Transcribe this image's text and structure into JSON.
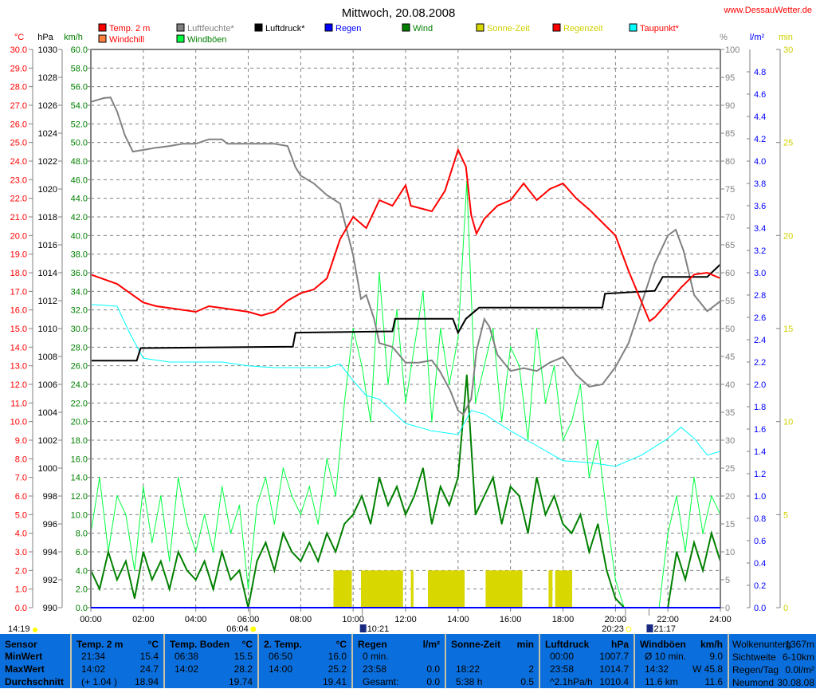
{
  "title": "Mittwoch, 20.08.2008",
  "website": "www.DessauWetter.de",
  "legend": [
    {
      "label": "Temp. 2 m",
      "swatch": "#ff0000",
      "text_color": "#ff0000"
    },
    {
      "label": "Luftfeuchte*",
      "swatch": "#808080",
      "text_color": "#808080"
    },
    {
      "label": "Luftdruck*",
      "swatch": "#000000",
      "text_color": "#000000"
    },
    {
      "label": "Regen",
      "swatch": "#0000ff",
      "text_color": "#0000ff"
    },
    {
      "label": "Wind",
      "swatch": "#008000",
      "text_color": "#008000"
    },
    {
      "label": "Sonne-Zeit",
      "swatch": "#d8d800",
      "text_color": "#d0d000"
    },
    {
      "label": "Regenzeit",
      "swatch": "#ff0000",
      "text_color": "#d0d000"
    },
    {
      "label": "Taupunkt*",
      "swatch": "#00ffff",
      "text_color": "#ff0000"
    },
    {
      "label": "Windchill",
      "swatch": "#ff8040",
      "text_color": "#ff0000"
    },
    {
      "label": "Windböen",
      "swatch": "#00ff40",
      "text_color": "#008000"
    }
  ],
  "chart_data": {
    "type": "line",
    "title": "Mittwoch, 20.08.2008",
    "xlabel": "",
    "x_ticks": [
      "00:00",
      "02:00",
      "04:00",
      "06:00",
      "08:00",
      "10:00",
      "12:00",
      "14:00",
      "16:00",
      "18:00",
      "20:00",
      "22:00",
      "24:00"
    ],
    "xlim": [
      0,
      24
    ],
    "grid": true,
    "legend_position": "top",
    "axes": {
      "temp": {
        "unit": "°C",
        "range": [
          0,
          30
        ],
        "color": "#ff0000"
      },
      "pressure": {
        "unit": "hPa",
        "range": [
          990,
          1030
        ],
        "color": "#000000"
      },
      "wind": {
        "unit": "km/h",
        "range": [
          0,
          60
        ],
        "color": "#008000"
      },
      "humidity": {
        "unit": "%",
        "range": [
          0,
          100
        ],
        "color": "#808080"
      },
      "rain": {
        "unit": "l/m²",
        "range": [
          0,
          5
        ],
        "color": "#0000ff"
      },
      "sun": {
        "unit": "min",
        "range": [
          0,
          30
        ],
        "color": "#d0d000"
      }
    },
    "series": [
      {
        "name": "Temp. 2 m",
        "axis": "temp",
        "color": "#ff0000",
        "t": [
          0,
          1,
          2,
          2.5,
          3,
          4,
          4.5,
          5,
          6,
          6.5,
          7,
          7.5,
          8,
          8.5,
          9,
          9.5,
          10,
          10.5,
          11,
          11.5,
          12,
          12.2,
          13,
          13.5,
          14,
          14.3,
          14.5,
          14.7,
          15,
          15.5,
          16,
          16.5,
          17,
          17.5,
          18,
          18.5,
          19,
          19.5,
          20,
          20.5,
          21,
          21.3,
          21.5,
          22,
          22.5,
          23,
          23.5,
          24
        ],
        "v": [
          17.9,
          17.4,
          16.4,
          16.2,
          16.1,
          15.9,
          16.2,
          16.1,
          15.9,
          15.7,
          15.9,
          16.5,
          16.9,
          17.1,
          17.7,
          19.8,
          21.0,
          20.4,
          21.9,
          21.6,
          22.7,
          21.6,
          21.3,
          22.4,
          24.6,
          23.7,
          21.1,
          20.1,
          20.9,
          21.6,
          21.9,
          22.8,
          21.9,
          22.5,
          22.8,
          22.0,
          21.4,
          20.7,
          20.0,
          18.1,
          16.4,
          15.4,
          15.6,
          16.4,
          17.2,
          17.9,
          18.0,
          17.7
        ]
      },
      {
        "name": "Luftfeuchte*",
        "axis": "humidity",
        "color": "#808080",
        "t": [
          0,
          0.5,
          0.75,
          1,
          1.3,
          1.6,
          2,
          2.5,
          3,
          3.5,
          4,
          4.5,
          5,
          5.2,
          6,
          7,
          7.5,
          7.8,
          8,
          8.5,
          9,
          9.5,
          10,
          10.3,
          10.5,
          10.8,
          11,
          11.5,
          12,
          12.5,
          13,
          13.3,
          13.7,
          14,
          14.2,
          14.5,
          14.7,
          15,
          15.2,
          15.5,
          16,
          16.5,
          17,
          17.5,
          18,
          18.5,
          19,
          19.5,
          20,
          20.5,
          21,
          21.5,
          22,
          22.3,
          22.6,
          23,
          23.5,
          24
        ],
        "v": [
          90.6,
          91.3,
          91.4,
          88.9,
          84.6,
          81.7,
          82,
          82.4,
          82.7,
          83.1,
          83.1,
          83.9,
          83.9,
          83.1,
          83.1,
          83.1,
          82.7,
          78.9,
          77.4,
          76,
          73.9,
          72.4,
          63.1,
          55.3,
          56,
          51.7,
          47.4,
          46.7,
          43.9,
          43.9,
          44.3,
          42.4,
          38.9,
          35.3,
          34.6,
          37.4,
          46,
          51.7,
          50.3,
          45.3,
          42.4,
          42.9,
          42.4,
          43.9,
          44.9,
          41.7,
          39.6,
          40,
          43.1,
          47.4,
          54.6,
          61.7,
          66.7,
          67.7,
          63.9,
          56,
          53.1,
          54.9
        ]
      },
      {
        "name": "Luftdruck*",
        "axis": "pressure",
        "color": "#000000",
        "t": [
          0,
          1.75,
          1.9,
          7.7,
          7.8,
          11.5,
          11.6,
          13.8,
          14,
          14.3,
          14.8,
          19.5,
          19.6,
          21.5,
          21.8,
          23.5,
          24
        ],
        "v": [
          1007.7,
          1007.7,
          1008.6,
          1008.7,
          1009.7,
          1009.8,
          1010.7,
          1010.7,
          1009.7,
          1010.7,
          1011.5,
          1011.5,
          1012.5,
          1012.7,
          1013.7,
          1013.7,
          1014.6
        ]
      },
      {
        "name": "Taupunkt*",
        "axis": "temp",
        "color": "#00ffff",
        "t": [
          0,
          1,
          1.5,
          2,
          3,
          4,
          5,
          6,
          7,
          8,
          9,
          9.5,
          10,
          10.5,
          11,
          12,
          13,
          14,
          14.5,
          15,
          16,
          17,
          18,
          19,
          20,
          21,
          22,
          22.5,
          23,
          23.5,
          24
        ],
        "v": [
          16.3,
          16.2,
          14.7,
          13.4,
          13.2,
          13.2,
          13.2,
          13.0,
          12.9,
          12.9,
          12.9,
          13.1,
          12.2,
          11.4,
          11.2,
          9.9,
          9.5,
          9.3,
          10.6,
          10.4,
          9.5,
          8.7,
          7.9,
          7.8,
          7.6,
          8.2,
          9.1,
          9.7,
          9.1,
          8.2,
          8.4
        ]
      },
      {
        "name": "Wind",
        "axis": "wind",
        "color": "#008000",
        "step_hours": 0.3333,
        "v": [
          4,
          2,
          6,
          3,
          5,
          1,
          6,
          3,
          5,
          2,
          6,
          4,
          3,
          5,
          2,
          6,
          3,
          4,
          0,
          5,
          7,
          4,
          8,
          6,
          5,
          7,
          5,
          8,
          6,
          9,
          10,
          12,
          9,
          14,
          11,
          13,
          10,
          12,
          15,
          9,
          13,
          11,
          14,
          25,
          10,
          12,
          14,
          9,
          13,
          12,
          8,
          14,
          10,
          12,
          9,
          8,
          10,
          6,
          9,
          4,
          1,
          0,
          0,
          0,
          0,
          0,
          0,
          6,
          3,
          7,
          4,
          8,
          5
        ]
      },
      {
        "name": "Windböen",
        "axis": "wind",
        "color": "#00ff40",
        "step_hours": 0.3333,
        "v": [
          8,
          14,
          6,
          12,
          10,
          4,
          13,
          7,
          12,
          5,
          14,
          9,
          6,
          10,
          6,
          13,
          8,
          11,
          2,
          11,
          14,
          9,
          15,
          12,
          10,
          13,
          9,
          16,
          12,
          22,
          30,
          26,
          20,
          36,
          24,
          32,
          22,
          28,
          34,
          20,
          30,
          24,
          29,
          45.8,
          22,
          26,
          30,
          20,
          28,
          26,
          18,
          30,
          22,
          26,
          18,
          20,
          24,
          14,
          18,
          10,
          3,
          0,
          0,
          0,
          0,
          0,
          8,
          12,
          6,
          14,
          8,
          12,
          10
        ]
      },
      {
        "name": "Regen",
        "axis": "rain",
        "color": "#0000ff",
        "t": [
          0,
          24
        ],
        "v": [
          0,
          0
        ]
      }
    ],
    "sun_bars": {
      "axis": "sun",
      "color": "#d8d800",
      "value": 2.0,
      "intervals": [
        [
          9.25,
          9.95
        ],
        [
          10.3,
          11.9
        ],
        [
          12.2,
          12.3
        ],
        [
          12.85,
          14.25
        ],
        [
          15.05,
          16.45
        ],
        [
          17.45,
          17.6
        ],
        [
          17.7,
          18.35
        ]
      ]
    }
  },
  "astro": [
    {
      "label": "14:19",
      "icon": "moonrise-icon",
      "hour": null
    },
    {
      "label": "06:04",
      "icon": "sunrise-icon",
      "hour": 6.07
    },
    {
      "label": "10:21",
      "icon": "moon-icon",
      "hour": 10.35
    },
    {
      "label": "20:23",
      "icon": "sunset-icon",
      "hour": 20.38
    },
    {
      "label": "21:17",
      "icon": "moon-icon",
      "hour": 21.28
    }
  ],
  "table": {
    "row_labels": [
      "Sensor",
      "MinWert",
      "MaxWert",
      "Durchschnitt"
    ],
    "columns": [
      {
        "header": "Temp. 2 m",
        "unit": "°C",
        "rows": [
          [
            "21:34",
            "15.4"
          ],
          [
            "14:02",
            "24.7"
          ],
          [
            "(+ 1.04 )",
            "18.94"
          ]
        ]
      },
      {
        "header": "Temp. Boden",
        "unit": "°C",
        "rows": [
          [
            "06:38",
            "15.5"
          ],
          [
            "14:02",
            "28.2"
          ],
          [
            "",
            "19.74"
          ]
        ]
      },
      {
        "header": "2. Temp.",
        "unit": "°C",
        "rows": [
          [
            "06:50",
            "16.0"
          ],
          [
            "14:00",
            "25.2"
          ],
          [
            "",
            "19.41"
          ]
        ]
      },
      {
        "header": "Regen",
        "unit": "l/m²",
        "rows": [
          [
            "0 min.",
            ""
          ],
          [
            "23:58",
            "0.0"
          ],
          [
            "Gesamt:",
            "0.0"
          ]
        ]
      },
      {
        "header": "Sonne-Zeit",
        "unit": "min",
        "rows": [
          [
            "",
            ""
          ],
          [
            "18:22",
            "2"
          ],
          [
            "5:38 h",
            "0.5"
          ]
        ]
      },
      {
        "header": "Luftdruck",
        "unit": "hPa",
        "rows": [
          [
            "00:00",
            "1007.7"
          ],
          [
            "23:58",
            "1014.7"
          ],
          [
            "^2.1hPa/h",
            "1010.4"
          ]
        ]
      },
      {
        "header": "Windböen",
        "unit": "km/h",
        "rows": [
          [
            "Ø 10 min.",
            "9.0"
          ],
          [
            "14:32",
            "W 45.8"
          ],
          [
            "11.6 km",
            "11.6"
          ]
        ]
      }
    ],
    "extra": [
      [
        "Wolkenunterg",
        "1367m"
      ],
      [
        "Sichtweite",
        "6-10km"
      ],
      [
        "Regen/Tag",
        "0.0l/m²"
      ],
      [
        "Neumond",
        "30.08.08"
      ]
    ]
  }
}
